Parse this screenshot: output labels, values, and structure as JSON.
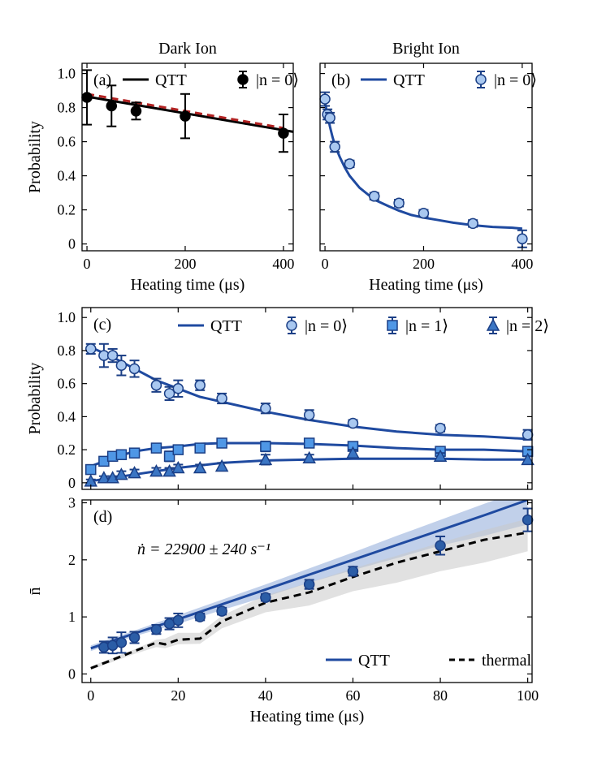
{
  "colors": {
    "dark": "#000000",
    "qtt": "#1f4aa0",
    "thermal": "#000000",
    "dashed_red": "#b22222",
    "n0_fill": "#a9c8f0",
    "n1_fill": "#4f97e6",
    "n2_fill": "#3b76c4",
    "nbar_fill": "#2b5da6",
    "marker_edge": "#1b3f86",
    "band_qtt": "#8ea9d8",
    "band_thermal": "#c8c8c8"
  },
  "chart_data": [
    {
      "panel": "a",
      "type": "line",
      "title": "Dark Ion",
      "panel_label": "(a)",
      "xlabel": "Heating time (μs)",
      "ylabel": "Probability",
      "xlim": [
        -10,
        420
      ],
      "ylim": [
        -0.04,
        1.06
      ],
      "xticks": [
        0,
        200,
        400
      ],
      "yticks": [
        0,
        0.2,
        0.4,
        0.6,
        0.8,
        1.0
      ],
      "xtick_labels": [
        "0",
        "200",
        "400"
      ],
      "ytick_labels": [
        "0",
        "0.2",
        "0.4",
        "0.6",
        "0.8",
        "1.0"
      ],
      "legend": {
        "placement": "top-right",
        "entries": [
          "QTT",
          "|n = 0⟩"
        ]
      },
      "series": [
        {
          "name": "QTT",
          "kind": "line",
          "color": "dark",
          "x": [
            0,
            420
          ],
          "y": [
            0.865,
            0.658
          ]
        },
        {
          "kind": "dashed",
          "color": "dashed_red",
          "x": [
            0,
            400
          ],
          "y": [
            0.88,
            0.68
          ]
        },
        {
          "name": "|n = 0⟩",
          "kind": "points",
          "marker": "circle",
          "fill": "dark",
          "x": [
            0,
            50,
            100,
            200,
            400
          ],
          "y": [
            0.86,
            0.81,
            0.78,
            0.75,
            0.65
          ],
          "err": [
            0.16,
            0.12,
            0.05,
            0.13,
            0.11
          ]
        }
      ]
    },
    {
      "panel": "b",
      "type": "line",
      "title": "Bright Ion",
      "panel_label": "(b)",
      "xlabel": "Heating time (μs)",
      "ylabel": "",
      "xlim": [
        -10,
        420
      ],
      "ylim": [
        -0.04,
        1.06
      ],
      "xticks": [
        0,
        200,
        400
      ],
      "yticks": [
        0,
        0.2,
        0.4,
        0.6,
        0.8,
        1.0
      ],
      "xtick_labels": [
        "0",
        "200",
        "400"
      ],
      "legend": {
        "placement": "top-right",
        "entries": [
          "QTT",
          "|n = 0⟩"
        ]
      },
      "series": [
        {
          "name": "QTT",
          "kind": "line",
          "color": "qtt",
          "x": [
            0,
            5,
            10,
            15,
            20,
            30,
            40,
            50,
            70,
            100,
            130,
            150,
            175,
            200,
            230,
            260,
            300,
            340,
            380,
            400
          ],
          "y": [
            0.83,
            0.76,
            0.69,
            0.63,
            0.58,
            0.51,
            0.45,
            0.4,
            0.33,
            0.26,
            0.22,
            0.195,
            0.17,
            0.155,
            0.14,
            0.125,
            0.11,
            0.1,
            0.095,
            0.09
          ]
        },
        {
          "name": "|n = 0⟩",
          "kind": "points",
          "marker": "circle",
          "fill": "n0_fill",
          "x": [
            0,
            5,
            10,
            20,
            50,
            100,
            150,
            200,
            300,
            400
          ],
          "y": [
            0.85,
            0.76,
            0.74,
            0.57,
            0.47,
            0.28,
            0.24,
            0.18,
            0.12,
            0.03
          ],
          "err": [
            0.04,
            0.03,
            0.03,
            0.03,
            0.02,
            0.02,
            0.02,
            0.02,
            0.02,
            0.05
          ]
        }
      ]
    },
    {
      "panel": "c",
      "type": "line",
      "panel_label": "(c)",
      "xlabel": "",
      "ylabel": "Probability",
      "xlim": [
        -2,
        101
      ],
      "ylim": [
        -0.04,
        1.06
      ],
      "xticks": [
        0,
        20,
        40,
        60,
        80,
        100
      ],
      "yticks": [
        0,
        0.2,
        0.4,
        0.6,
        0.8,
        1.0
      ],
      "ytick_labels": [
        "0",
        "0.2",
        "0.4",
        "0.6",
        "0.8",
        "1.0"
      ],
      "legend": {
        "placement": "top-right",
        "entries": [
          "QTT",
          "|n = 0⟩",
          "|n = 1⟩",
          "|n = 2⟩"
        ]
      },
      "series": [
        {
          "name": "QTT",
          "kind": "line",
          "color": "qtt",
          "x": [
            0,
            5,
            10,
            15,
            20,
            25,
            30,
            40,
            50,
            60,
            70,
            80,
            90,
            100
          ],
          "y": [
            0.82,
            0.76,
            0.69,
            0.62,
            0.57,
            0.52,
            0.49,
            0.43,
            0.38,
            0.34,
            0.31,
            0.29,
            0.28,
            0.265
          ]
        },
        {
          "kind": "line",
          "color": "qtt",
          "x": [
            0,
            5,
            10,
            15,
            20,
            25,
            30,
            40,
            50,
            60,
            70,
            80,
            90,
            100
          ],
          "y": [
            0.1,
            0.15,
            0.19,
            0.21,
            0.22,
            0.235,
            0.24,
            0.24,
            0.235,
            0.225,
            0.21,
            0.2,
            0.2,
            0.19
          ]
        },
        {
          "kind": "line",
          "color": "qtt",
          "x": [
            0,
            5,
            10,
            15,
            20,
            25,
            30,
            40,
            50,
            60,
            70,
            80,
            90,
            100
          ],
          "y": [
            0.01,
            0.03,
            0.05,
            0.07,
            0.09,
            0.105,
            0.12,
            0.135,
            0.14,
            0.145,
            0.145,
            0.145,
            0.14,
            0.14
          ]
        },
        {
          "name": "|n = 0⟩",
          "kind": "points",
          "marker": "circle",
          "fill": "n0_fill",
          "x": [
            0,
            3,
            5,
            7,
            10,
            15,
            18,
            20,
            25,
            30,
            40,
            50,
            60,
            80,
            100
          ],
          "y": [
            0.81,
            0.77,
            0.77,
            0.71,
            0.69,
            0.59,
            0.54,
            0.57,
            0.59,
            0.51,
            0.45,
            0.41,
            0.36,
            0.33,
            0.29
          ],
          "err": [
            0.03,
            0.07,
            0.04,
            0.06,
            0.05,
            0.04,
            0.04,
            0.05,
            0.03,
            0.03,
            0.03,
            0.03,
            0.02,
            0.02,
            0.03
          ]
        },
        {
          "name": "|n = 1⟩",
          "kind": "points",
          "marker": "square",
          "fill": "n1_fill",
          "x": [
            0,
            3,
            5,
            7,
            10,
            15,
            18,
            20,
            25,
            30,
            40,
            50,
            60,
            80,
            100
          ],
          "y": [
            0.08,
            0.13,
            0.16,
            0.17,
            0.18,
            0.21,
            0.16,
            0.2,
            0.21,
            0.24,
            0.22,
            0.24,
            0.22,
            0.19,
            0.19
          ],
          "err": [
            0.02,
            0.02,
            0.02,
            0.02,
            0.02,
            0.02,
            0.03,
            0.02,
            0.02,
            0.02,
            0.03,
            0.02,
            0.02,
            0.02,
            0.02
          ]
        },
        {
          "name": "|n = 2⟩",
          "kind": "points",
          "marker": "triangle",
          "fill": "n2_fill",
          "x": [
            0,
            3,
            5,
            7,
            10,
            15,
            18,
            20,
            25,
            30,
            40,
            50,
            60,
            80,
            100
          ],
          "y": [
            0.01,
            0.03,
            0.03,
            0.05,
            0.06,
            0.07,
            0.07,
            0.09,
            0.09,
            0.1,
            0.14,
            0.15,
            0.18,
            0.16,
            0.14
          ],
          "err": [
            0.01,
            0.01,
            0.01,
            0.02,
            0.02,
            0.02,
            0.02,
            0.02,
            0.02,
            0.02,
            0.03,
            0.02,
            0.02,
            0.02,
            0.02
          ]
        }
      ]
    },
    {
      "panel": "d",
      "type": "line",
      "panel_label": "(d)",
      "annotation": "ṅ = 22900 ± 240 s⁻¹",
      "xlabel": "Heating time (μs)",
      "ylabel": "n̄",
      "xlim": [
        -2,
        101
      ],
      "ylim": [
        -0.15,
        3.05
      ],
      "xticks": [
        0,
        20,
        40,
        60,
        80,
        100
      ],
      "yticks": [
        0,
        1,
        2,
        3
      ],
      "xtick_labels": [
        "0",
        "20",
        "40",
        "60",
        "80",
        "100"
      ],
      "ytick_labels": [
        "0",
        "1",
        "2",
        "3"
      ],
      "legend": {
        "placement": "bottom-right",
        "entries": [
          "QTT",
          "thermal"
        ]
      },
      "bands": [
        {
          "name": "QTT",
          "color": "band_qtt",
          "x": [
            0,
            10,
            20,
            30,
            40,
            50,
            60,
            70,
            80,
            90,
            100
          ],
          "lo": [
            0.4,
            0.66,
            0.88,
            1.12,
            1.35,
            1.6,
            1.82,
            2.03,
            2.25,
            2.42,
            2.62
          ],
          "hi": [
            0.5,
            0.76,
            1.03,
            1.3,
            1.57,
            1.85,
            2.13,
            2.42,
            2.7,
            2.98,
            3.25
          ]
        },
        {
          "name": "thermal",
          "color": "band_thermal",
          "x": [
            0,
            10,
            15,
            17,
            20,
            25,
            30,
            40,
            50,
            60,
            70,
            80,
            90,
            100
          ],
          "lo": [
            0.07,
            0.35,
            0.47,
            0.45,
            0.52,
            0.53,
            0.8,
            1.08,
            1.2,
            1.45,
            1.6,
            1.8,
            1.95,
            2.15
          ],
          "hi": [
            0.13,
            0.43,
            0.6,
            0.62,
            0.72,
            0.72,
            1.02,
            1.38,
            1.6,
            1.85,
            2.07,
            2.3,
            2.52,
            2.72
          ]
        }
      ],
      "series": [
        {
          "name": "QTT",
          "kind": "line",
          "color": "qtt",
          "x": [
            0,
            10,
            20,
            30,
            40,
            50,
            60,
            70,
            80,
            90,
            100
          ],
          "y": [
            0.45,
            0.71,
            0.96,
            1.22,
            1.48,
            1.74,
            2.0,
            2.26,
            2.52,
            2.78,
            3.05
          ]
        },
        {
          "name": "thermal",
          "kind": "dashed",
          "color": "thermal",
          "x": [
            0,
            5,
            10,
            15,
            17,
            20,
            25,
            30,
            40,
            50,
            60,
            70,
            80,
            90,
            100
          ],
          "y": [
            0.1,
            0.25,
            0.4,
            0.55,
            0.52,
            0.6,
            0.62,
            0.92,
            1.25,
            1.43,
            1.7,
            1.95,
            2.15,
            2.35,
            2.48
          ]
        },
        {
          "kind": "points",
          "marker": "circle",
          "fill": "nbar_fill",
          "x": [
            3,
            5,
            7,
            10,
            15,
            18,
            20,
            25,
            30,
            40,
            50,
            60,
            80,
            100
          ],
          "y": [
            0.47,
            0.5,
            0.55,
            0.64,
            0.78,
            0.88,
            0.94,
            1.0,
            1.1,
            1.34,
            1.57,
            1.8,
            2.25,
            2.7
          ],
          "err": [
            0.1,
            0.14,
            0.18,
            0.1,
            0.08,
            0.1,
            0.12,
            0.06,
            0.06,
            0.06,
            0.08,
            0.08,
            0.16,
            0.2
          ]
        }
      ]
    }
  ]
}
